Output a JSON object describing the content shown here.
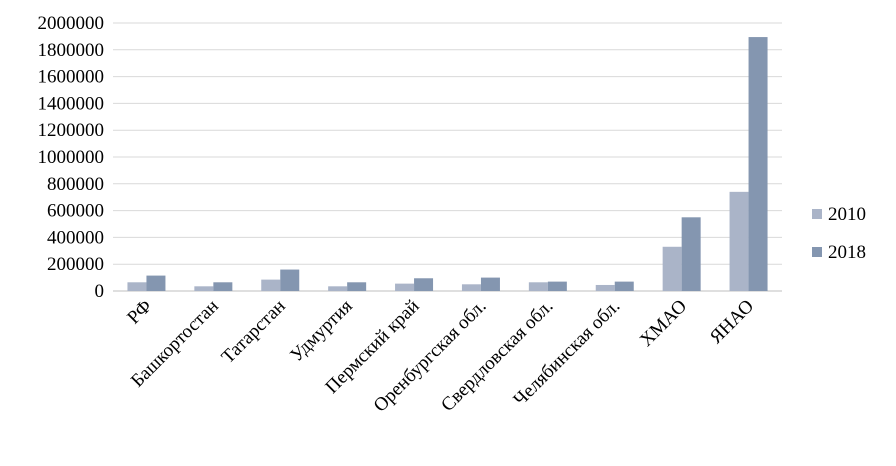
{
  "chart_data": {
    "type": "bar",
    "title": "",
    "xlabel": "",
    "ylabel": "",
    "categories": [
      "РФ",
      "Башкортостан",
      "Татарстан",
      "Удмуртия",
      "Пермский край",
      "Оренбургская обл.",
      "Свердловская обл.",
      "Челябинская обл.",
      "ХМАО",
      "ЯНАО"
    ],
    "series": [
      {
        "name": "2010",
        "color": "#aab4c8",
        "values": [
          65000,
          35000,
          85000,
          35000,
          55000,
          50000,
          65000,
          45000,
          330000,
          740000
        ]
      },
      {
        "name": "2018",
        "color": "#8496b0",
        "values": [
          115000,
          65000,
          160000,
          65000,
          95000,
          100000,
          70000,
          70000,
          550000,
          1895000
        ]
      }
    ],
    "ylim": [
      0,
      2000000
    ],
    "yticks": [
      0,
      200000,
      400000,
      600000,
      800000,
      1000000,
      1200000,
      1400000,
      1600000,
      1800000,
      2000000
    ],
    "grid": true,
    "legend_position": "right"
  }
}
